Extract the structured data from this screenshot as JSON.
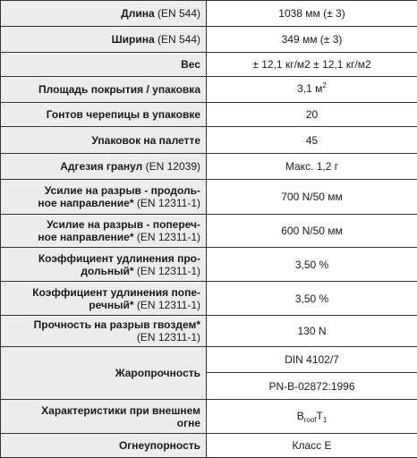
{
  "rows": [
    {
      "label_bold": "Длина",
      "label_norm": " (EN 544)",
      "value": "1038 мм (± 3)"
    },
    {
      "label_bold": "Ширина",
      "label_norm": " (EN 544)",
      "value": "349 мм (± 3)"
    },
    {
      "label_bold": "Вес",
      "label_norm": "",
      "value": "± 12,1 кг/м2 ± 12,1 кг/м2"
    },
    {
      "label_bold": "Площадь покрытия / упаковка",
      "label_norm": "",
      "value": "3,1 м",
      "value_sup": "2"
    },
    {
      "label_bold": "Гонтов черепицы в упаковке",
      "label_norm": "",
      "value": "20"
    },
    {
      "label_bold": "Упаковок на палетте",
      "label_norm": "",
      "value": "45"
    },
    {
      "label_bold": "Адгезия гранул",
      "label_norm": " (EN 12039)",
      "value": "Макс. 1,2 г"
    },
    {
      "label_bold_line1": "Усилие на разрыв - продоль-",
      "label_bold_line2": "ное направление*",
      "label_norm": " (EN 12311-1)",
      "value": "700 N/50 мм"
    },
    {
      "label_bold_line1": "Усилие на разрыв - попереч-",
      "label_bold_line2": "ное направление*",
      "label_norm": " (EN 12311-1)",
      "value": "600 N/50 мм"
    },
    {
      "label_bold_line1": "Коэффициент удлинения про-",
      "label_bold_line2": "дольный*",
      "label_norm": " (EN 12311-1)",
      "value": "3,50 %"
    },
    {
      "label_bold_line1": "Коэффициент удлинения попе-",
      "label_bold_line2": "речный*",
      "label_norm": " (EN 12311-1)",
      "value": "3,50 %"
    },
    {
      "label_bold_line1": "Прочность на разрыв гвоздем*",
      "label_norm_line2": "(EN 12311-1)",
      "value": "130 N"
    },
    {
      "label_bold": "Жаропрочность",
      "value_1": "DIN 4102/7",
      "value_2": "PN-B-02872:1996"
    },
    {
      "label_bold_line1": "Характеристики при внешнем",
      "label_bold_line2": "огне",
      "value_b": "B",
      "value_sub1": "roof",
      "value_t": "T",
      "value_sub2": "1"
    },
    {
      "label_bold": "Огнеупорность",
      "label_norm": "",
      "value": "Класс E"
    }
  ]
}
